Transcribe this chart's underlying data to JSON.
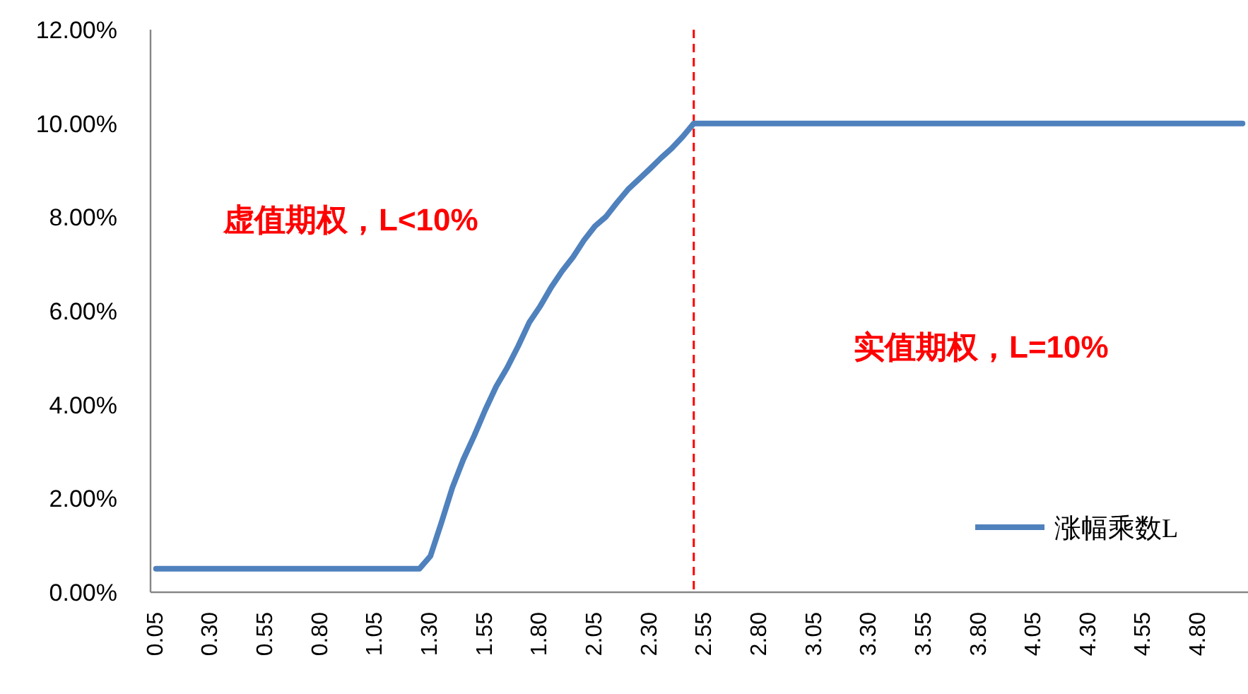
{
  "chart_data": {
    "type": "line",
    "x": [
      0.05,
      0.1,
      0.15,
      0.2,
      0.25,
      0.3,
      0.35,
      0.4,
      0.45,
      0.5,
      0.55,
      0.6,
      0.65,
      0.7,
      0.75,
      0.8,
      0.85,
      0.9,
      0.95,
      1.0,
      1.05,
      1.1,
      1.15,
      1.2,
      1.25,
      1.3,
      1.35,
      1.4,
      1.45,
      1.5,
      1.55,
      1.6,
      1.65,
      1.7,
      1.75,
      1.8,
      1.85,
      1.9,
      1.95,
      2.0,
      2.05,
      2.1,
      2.15,
      2.2,
      2.25,
      2.3,
      2.35,
      2.4,
      2.45,
      2.5,
      2.55,
      2.6,
      2.65,
      2.7,
      2.75,
      2.8,
      2.85,
      2.9,
      2.95,
      3.0,
      3.05,
      3.1,
      3.15,
      3.2,
      3.25,
      3.3,
      3.35,
      3.4,
      3.45,
      3.5,
      3.55,
      3.6,
      3.65,
      3.7,
      3.75,
      3.8,
      3.85,
      3.9,
      3.95,
      4.0,
      4.05,
      4.1,
      4.15,
      4.2,
      4.25,
      4.3,
      4.35,
      4.4,
      4.45,
      4.5,
      4.55,
      4.6,
      4.65,
      4.7,
      4.75,
      4.8,
      4.85,
      4.9,
      4.95,
      5.0
    ],
    "series": [
      {
        "name": "涨幅乘数L",
        "color": "#4f81bd",
        "values": [
          0.5,
          0.5,
          0.5,
          0.5,
          0.5,
          0.5,
          0.5,
          0.5,
          0.5,
          0.5,
          0.5,
          0.5,
          0.5,
          0.5,
          0.5,
          0.5,
          0.5,
          0.5,
          0.5,
          0.5,
          0.5,
          0.5,
          0.5,
          0.5,
          0.5,
          0.77,
          1.48,
          2.23,
          2.83,
          3.34,
          3.89,
          4.39,
          4.79,
          5.25,
          5.75,
          6.1,
          6.5,
          6.85,
          7.15,
          7.51,
          7.81,
          8.01,
          8.31,
          8.59,
          8.81,
          9.03,
          9.26,
          9.47,
          9.72,
          10,
          10,
          10,
          10,
          10,
          10,
          10,
          10,
          10,
          10,
          10,
          10,
          10,
          10,
          10,
          10,
          10,
          10,
          10,
          10,
          10,
          10,
          10,
          10,
          10,
          10,
          10,
          10,
          10,
          10,
          10,
          10,
          10,
          10,
          10,
          10,
          10,
          10,
          10,
          10,
          10,
          10,
          10,
          10,
          10,
          10,
          10,
          10,
          10,
          10,
          10
        ]
      }
    ],
    "xlim": [
      0.025,
      5.025
    ],
    "xticks": [
      {
        "value": 0.05,
        "label": "0.05"
      },
      {
        "value": 0.3,
        "label": "0.30"
      },
      {
        "value": 0.55,
        "label": "0.55"
      },
      {
        "value": 0.8,
        "label": "0.80"
      },
      {
        "value": 1.05,
        "label": "1.05"
      },
      {
        "value": 1.3,
        "label": "1.30"
      },
      {
        "value": 1.55,
        "label": "1.55"
      },
      {
        "value": 1.8,
        "label": "1.80"
      },
      {
        "value": 2.05,
        "label": "2.05"
      },
      {
        "value": 2.3,
        "label": "2.30"
      },
      {
        "value": 2.55,
        "label": "2.55"
      },
      {
        "value": 2.8,
        "label": "2.80"
      },
      {
        "value": 3.05,
        "label": "3.05"
      },
      {
        "value": 3.3,
        "label": "3.30"
      },
      {
        "value": 3.55,
        "label": "3.55"
      },
      {
        "value": 3.8,
        "label": "3.80"
      },
      {
        "value": 4.05,
        "label": "4.05"
      },
      {
        "value": 4.3,
        "label": "4.30"
      },
      {
        "value": 4.55,
        "label": "4.55"
      },
      {
        "value": 4.8,
        "label": "4.80"
      }
    ],
    "ylim": [
      0,
      12
    ],
    "yticks": [
      {
        "value": 0,
        "label": "0.00%"
      },
      {
        "value": 2,
        "label": "2.00%"
      },
      {
        "value": 4,
        "label": "4.00%"
      },
      {
        "value": 6,
        "label": "6.00%"
      },
      {
        "value": 8,
        "label": "8.00%"
      },
      {
        "value": 10,
        "label": "10.00%"
      },
      {
        "value": 12,
        "label": "12.00%"
      }
    ],
    "ref_lines": [
      {
        "axis": "x",
        "value": 2.5,
        "color": "#ff0000",
        "line_style": "dashed"
      }
    ],
    "annotations": [
      "虚值期权，L<10%",
      "实值期权，L=10%"
    ],
    "legend": "bottom right",
    "grid": false,
    "marker": "none",
    "line_style": "solid"
  }
}
